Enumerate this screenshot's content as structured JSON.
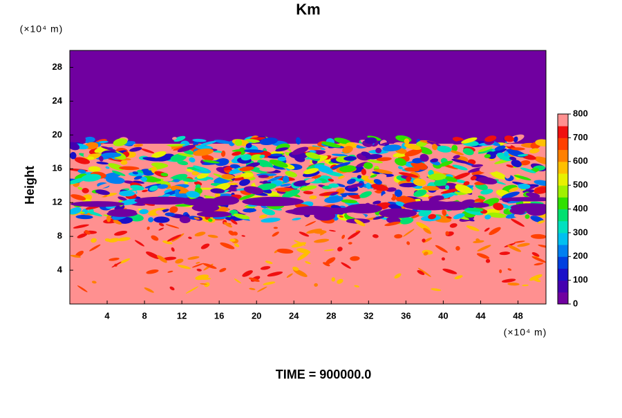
{
  "chart_data": {
    "type": "contour",
    "title": "Km",
    "x_label": "(×10⁴ m)",
    "y_label": "Height",
    "y_unit_label": "(×10⁴ m)",
    "footer": "TIME = 900000.0",
    "xlim": [
      0,
      51
    ],
    "xticks": [
      4,
      8,
      12,
      16,
      20,
      24,
      28,
      32,
      36,
      40,
      44,
      48
    ],
    "ylim": [
      0,
      30
    ],
    "yticks": [
      4,
      8,
      12,
      16,
      20,
      24,
      28
    ],
    "colorbar": {
      "lim": [
        0,
        800
      ],
      "ticks": [
        0,
        100,
        200,
        300,
        400,
        500,
        600,
        700,
        800
      ],
      "colors": [
        "#7000a0",
        "#4400b0",
        "#1a10c8",
        "#0040e0",
        "#0080f0",
        "#00c0f0",
        "#00e0c0",
        "#00e070",
        "#30e000",
        "#a0f000",
        "#e8f000",
        "#ffc000",
        "#ff8000",
        "#ff4000",
        "#f01010",
        "#ff9090"
      ]
    }
  }
}
